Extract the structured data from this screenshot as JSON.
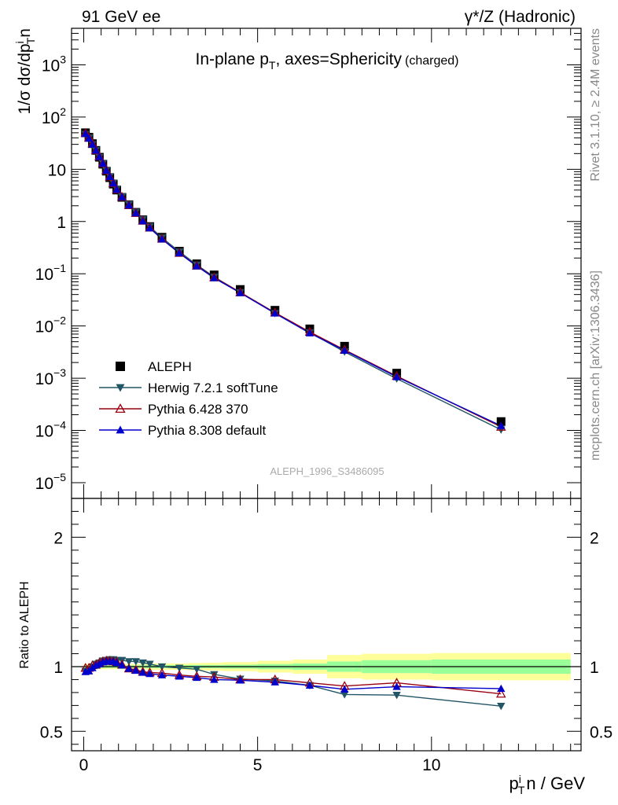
{
  "header": {
    "left": "91 GeV ee",
    "right": "γ*/Z (Hadronic)"
  },
  "side_text": {
    "top": "Rivet 3.1.10, ≥ 2.4M events",
    "bottom": "mcplots.cern.ch [arXiv:1306.3436]"
  },
  "main_plot": {
    "title_main": "In-plane p",
    "title_sub": "T",
    "title_rest": ", axes=Sphericity",
    "title_tag": "(charged)",
    "ylabel": "1/σ dσ/dp",
    "ylabel_sup": "i",
    "ylabel_sub": "T",
    "ylabel_rest": "n",
    "yscale": "log",
    "ylim": [
      5e-06,
      5000
    ],
    "watermark": "ALEPH_1996_S3486095",
    "ytick_labels": [
      {
        "value": 1e-05,
        "base": "10",
        "exp": "−5"
      },
      {
        "value": 0.0001,
        "base": "10",
        "exp": "−4"
      },
      {
        "value": 0.001,
        "base": "10",
        "exp": "−3"
      },
      {
        "value": 0.01,
        "base": "10",
        "exp": "−2"
      },
      {
        "value": 0.1,
        "base": "10",
        "exp": "−1"
      },
      {
        "value": 1,
        "base": "1",
        "exp": ""
      },
      {
        "value": 10,
        "base": "10",
        "exp": ""
      },
      {
        "value": 100,
        "base": "10",
        "exp": "2"
      },
      {
        "value": 1000,
        "base": "10",
        "exp": "3"
      }
    ]
  },
  "ratio_plot": {
    "ylabel": "Ratio to ALEPH",
    "ylim": [
      0.35,
      2.3
    ],
    "ytick_labels": [
      {
        "value": 0.5,
        "label": "0.5"
      },
      {
        "value": 1,
        "label": "1"
      },
      {
        "value": 2,
        "label": "2"
      }
    ]
  },
  "x_axis": {
    "label_main": "p",
    "label_sup": "i",
    "label_sub": "T",
    "label_rest": "n / GeV",
    "xlim": [
      -0.35,
      14.3
    ],
    "tick_labels": [
      {
        "value": 0,
        "label": "0"
      },
      {
        "value": 5,
        "label": "5"
      },
      {
        "value": 10,
        "label": "10"
      }
    ]
  },
  "legend": [
    {
      "name": "ALEPH",
      "color": "#000000",
      "marker": "square"
    },
    {
      "name": "Herwig 7.2.1 softTune",
      "color": "#225566",
      "marker": "triangle-down"
    },
    {
      "name": "Pythia 6.428 370",
      "color": "#990011",
      "marker": "triangle-up-open"
    },
    {
      "name": "Pythia 8.308 default",
      "color": "#0000cc",
      "marker": "triangle-up"
    }
  ],
  "chart_data": {
    "type": "scatter",
    "x": [
      0.05,
      0.15,
      0.25,
      0.35,
      0.45,
      0.55,
      0.65,
      0.75,
      0.85,
      0.95,
      1.1,
      1.3,
      1.5,
      1.7,
      1.9,
      2.25,
      2.75,
      3.25,
      3.75,
      4.5,
      5.5,
      6.5,
      7.5,
      9.0,
      12.0
    ],
    "series": [
      {
        "name": "ALEPH",
        "values": [
          50,
          41,
          31,
          23,
          17,
          12.5,
          9.2,
          6.9,
          5.2,
          4.0,
          2.9,
          2.1,
          1.5,
          1.08,
          0.8,
          0.5,
          0.27,
          0.155,
          0.095,
          0.05,
          0.02,
          0.0088,
          0.0041,
          0.00125,
          0.000148
        ]
      },
      {
        "name": "Herwig 7.2.1 softTune",
        "values": [
          47,
          40,
          30,
          23,
          17,
          13,
          9.6,
          7.3,
          5.5,
          4.2,
          3.0,
          2.15,
          1.53,
          1.1,
          0.8,
          0.49,
          0.265,
          0.148,
          0.087,
          0.044,
          0.0175,
          0.0075,
          0.0032,
          0.00098,
          0.000103
        ]
      },
      {
        "name": "Pythia 6.428 370",
        "values": [
          49,
          40,
          31,
          23,
          17.5,
          13,
          9.5,
          7.2,
          5.4,
          4.1,
          2.95,
          2.05,
          1.45,
          1.03,
          0.76,
          0.465,
          0.25,
          0.142,
          0.085,
          0.044,
          0.018,
          0.0077,
          0.0035,
          0.0011,
          0.000117
        ]
      },
      {
        "name": "Pythia 8.308 default",
        "values": [
          48,
          39,
          30,
          23,
          17.3,
          12.9,
          9.5,
          7.2,
          5.4,
          4.1,
          2.95,
          2.05,
          1.45,
          1.02,
          0.75,
          0.46,
          0.248,
          0.14,
          0.083,
          0.043,
          0.0175,
          0.0073,
          0.0034,
          0.00106,
          0.000123
        ]
      }
    ],
    "ratio": {
      "x_edges": [
        0,
        0.1,
        0.2,
        0.3,
        0.4,
        0.5,
        0.6,
        0.7,
        0.8,
        0.9,
        1.0,
        1.2,
        1.4,
        1.6,
        1.8,
        2.0,
        2.5,
        3.0,
        3.5,
        4.0,
        5.0,
        6.0,
        7.0,
        8.0,
        10.0,
        14.0
      ],
      "stat_band": [
        0.01,
        0.01,
        0.01,
        0.01,
        0.01,
        0.01,
        0.01,
        0.01,
        0.01,
        0.01,
        0.01,
        0.01,
        0.01,
        0.01,
        0.012,
        0.012,
        0.012,
        0.013,
        0.013,
        0.015,
        0.02,
        0.025,
        0.04,
        0.05,
        0.055,
        0.17
      ],
      "total_band": [
        0.02,
        0.02,
        0.02,
        0.02,
        0.02,
        0.02,
        0.02,
        0.02,
        0.02,
        0.02,
        0.02,
        0.02,
        0.02,
        0.02,
        0.025,
        0.025,
        0.025,
        0.028,
        0.03,
        0.035,
        0.045,
        0.055,
        0.09,
        0.1,
        0.105,
        0.4
      ],
      "series": [
        {
          "name": "Herwig 7.2.1 softTune",
          "values": [
            0.965,
            0.98,
            1.0,
            1.02,
            1.03,
            1.045,
            1.05,
            1.055,
            1.055,
            1.05,
            1.05,
            1.04,
            1.04,
            1.03,
            1.02,
            1.0,
            0.99,
            0.98,
            0.94,
            0.905,
            0.89,
            0.855,
            0.785,
            0.78,
            0.695
          ]
        },
        {
          "name": "Pythia 6.428 370",
          "values": [
            0.99,
            0.99,
            1.01,
            1.015,
            1.03,
            1.04,
            1.045,
            1.045,
            1.04,
            1.035,
            1.015,
            0.985,
            0.975,
            0.96,
            0.955,
            0.95,
            0.935,
            0.925,
            0.92,
            0.9,
            0.9,
            0.875,
            0.85,
            0.875,
            0.79
          ]
        },
        {
          "name": "Pythia 8.308 default",
          "values": [
            0.96,
            0.965,
            0.99,
            1.01,
            1.02,
            1.035,
            1.04,
            1.04,
            1.04,
            1.03,
            1.01,
            0.985,
            0.97,
            0.955,
            0.945,
            0.935,
            0.925,
            0.915,
            0.9,
            0.895,
            0.88,
            0.855,
            0.825,
            0.845,
            0.83
          ]
        }
      ]
    }
  }
}
